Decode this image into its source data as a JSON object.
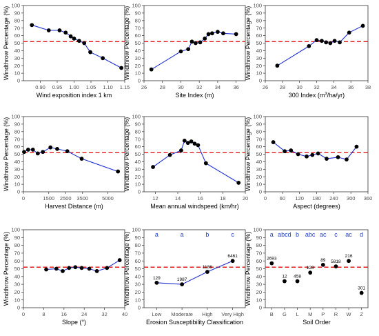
{
  "chart_data": [
    {
      "type": "line",
      "xlabel": "Wind exposition index 1 km",
      "ylabel": "Windthrow Percentage (%)",
      "xlim": [
        0.85,
        1.15
      ],
      "xticks": [
        0.9,
        0.95,
        1.0,
        1.05,
        1.1,
        1.15
      ],
      "xtick_labels": [
        "0.90",
        "0.95",
        "1.00",
        "1.05",
        "1.10",
        "1.15"
      ],
      "ylim": [
        0,
        100
      ],
      "yticks": [
        0,
        10,
        20,
        30,
        40,
        50,
        60,
        70,
        80,
        90,
        100
      ],
      "reference_line": 52,
      "series": [
        {
          "x": [
            0.875,
            0.925,
            0.957,
            0.975,
            0.99,
            1.0,
            1.015,
            1.03,
            1.048,
            1.085,
            1.14
          ],
          "y": [
            74,
            67,
            67,
            64,
            59,
            56,
            53,
            50,
            38,
            30,
            17
          ]
        }
      ]
    },
    {
      "type": "line",
      "xlabel": "Site Index (m)",
      "ylabel": "Windthrow Percentage (%)",
      "xlim": [
        26,
        37
      ],
      "xticks": [
        26,
        28,
        30,
        32,
        34,
        36
      ],
      "xtick_labels": [
        "26",
        "28",
        "30",
        "32",
        "34",
        "36"
      ],
      "ylim": [
        0,
        100
      ],
      "yticks": [
        0,
        10,
        20,
        30,
        40,
        50,
        60,
        70,
        80,
        90,
        100
      ],
      "reference_line": 52,
      "series": [
        {
          "x": [
            26.8,
            30,
            30.8,
            31.2,
            31.6,
            32.1,
            32.6,
            33,
            33.4,
            34,
            34.6,
            36
          ],
          "y": [
            15,
            39,
            42,
            52,
            50,
            51,
            56,
            62,
            63,
            65,
            63,
            62
          ]
        }
      ]
    },
    {
      "type": "line",
      "xlabel": "300 Index (m³/ha/yr)",
      "ylabel": "Windthrow Percentage (%)",
      "xlim": [
        26,
        38
      ],
      "xticks": [
        26,
        28,
        30,
        32,
        34,
        36,
        38
      ],
      "xtick_labels": [
        "26",
        "28",
        "30",
        "32",
        "34",
        "36",
        "38"
      ],
      "ylim": [
        0,
        100
      ],
      "yticks": [
        0,
        10,
        20,
        30,
        40,
        50,
        60,
        70,
        80,
        90,
        100
      ],
      "reference_line": 52,
      "series": [
        {
          "x": [
            27.4,
            31.1,
            32,
            32.6,
            33.1,
            33.6,
            34.1,
            34.7,
            35.8,
            37.4
          ],
          "y": [
            20,
            46,
            54,
            53,
            51,
            50,
            53,
            51,
            64,
            73
          ]
        }
      ]
    },
    {
      "type": "line",
      "xlabel": "Harvest Distance (m)",
      "ylabel": "Windthrow Percentage (%)",
      "xlim": [
        0,
        6000
      ],
      "xticks": [
        0,
        1500,
        2500,
        3500,
        5000
      ],
      "xtick_labels": [
        "0",
        "1500",
        "2500",
        "3500",
        "5000"
      ],
      "ylim": [
        0,
        100
      ],
      "yticks": [
        0,
        10,
        20,
        30,
        40,
        50,
        60,
        70,
        80,
        90,
        100
      ],
      "reference_line": 52,
      "series": [
        {
          "x": [
            40,
            280,
            560,
            850,
            1150,
            1600,
            2000,
            2600,
            3450,
            5600
          ],
          "y": [
            53,
            56,
            56,
            51,
            53,
            59,
            57,
            54,
            44,
            27
          ]
        }
      ]
    },
    {
      "type": "line",
      "xlabel": "Mean annual windspeed (km/hr)",
      "ylabel": "Windthrow Percentage (%)",
      "xlim": [
        11,
        20
      ],
      "xticks": [
        12,
        14,
        16,
        18,
        20
      ],
      "xtick_labels": [
        "12",
        "14",
        "16",
        "18",
        "20"
      ],
      "ylim": [
        0,
        100
      ],
      "yticks": [
        0,
        10,
        20,
        30,
        40,
        50,
        60,
        70,
        80,
        90,
        100
      ],
      "reference_line": 52,
      "series": [
        {
          "x": [
            11.8,
            13.3,
            14.3,
            14.6,
            14.9,
            15.2,
            15.5,
            15.8,
            16.5,
            19.4
          ],
          "y": [
            33,
            49,
            55,
            68,
            65,
            67,
            64,
            62,
            38,
            12
          ]
        }
      ]
    },
    {
      "type": "line",
      "xlabel": "Aspect (degrees)",
      "ylabel": "Windthrow Percentage (%)",
      "xlim": [
        0,
        360
      ],
      "xticks": [
        0,
        60,
        120,
        180,
        240,
        300,
        360
      ],
      "xtick_labels": [
        "0",
        "60",
        "120",
        "180",
        "240",
        "300",
        "360"
      ],
      "ylim": [
        0,
        100
      ],
      "yticks": [
        0,
        10,
        20,
        30,
        40,
        50,
        60,
        70,
        80,
        90,
        100
      ],
      "reference_line": 52,
      "series": [
        {
          "x": [
            28,
            68,
            90,
            115,
            145,
            165,
            185,
            215,
            255,
            285,
            320
          ],
          "y": [
            66,
            54,
            55,
            50,
            47,
            49,
            51,
            44,
            46,
            43,
            60
          ]
        }
      ]
    },
    {
      "type": "line",
      "xlabel": "Slope (°)",
      "ylabel": "Windthrow Percentage (%)",
      "xlim": [
        0,
        40
      ],
      "xticks": [
        0,
        8,
        16,
        24,
        32,
        40
      ],
      "xtick_labels": [
        "0",
        "8",
        "16",
        "24",
        "32",
        "40"
      ],
      "ylim": [
        0,
        100
      ],
      "yticks": [
        0,
        10,
        20,
        30,
        40,
        50,
        60,
        70,
        80,
        90,
        100
      ],
      "reference_line": 52,
      "series": [
        {
          "x": [
            9,
            13,
            15.5,
            18,
            20.5,
            23,
            26,
            29,
            33,
            38
          ],
          "y": [
            49,
            50,
            47,
            51,
            52,
            51,
            50,
            47,
            51,
            61
          ]
        }
      ]
    },
    {
      "type": "line",
      "xlabel": "Erosion Susceptibility Classification",
      "ylabel": "Windthrow Percentage (%)",
      "categories": [
        "Low",
        "Moderate",
        "High",
        "Very High"
      ],
      "ylim": [
        0,
        100
      ],
      "yticks": [
        0,
        10,
        20,
        30,
        40,
        50,
        60,
        70,
        80,
        90,
        100
      ],
      "reference_line": 52,
      "group_letters": [
        "a",
        "a",
        "b",
        "c"
      ],
      "point_labels": [
        "129",
        "1987",
        "1186",
        "6461"
      ],
      "series": [
        {
          "values": [
            32,
            30,
            46,
            60
          ]
        }
      ]
    },
    {
      "type": "scatter",
      "xlabel": "Soil Order",
      "ylabel": "Windthrow Percentage (%)",
      "categories": [
        "B",
        "G",
        "L",
        "M",
        "P",
        "R",
        "W",
        "Z"
      ],
      "ylim": [
        0,
        100
      ],
      "yticks": [
        0,
        10,
        20,
        30,
        40,
        50,
        60,
        70,
        80,
        90,
        100
      ],
      "reference_line": 52,
      "group_letters": [
        "a",
        "abcd",
        "b",
        "abc",
        "ac",
        "c",
        "ac",
        "d"
      ],
      "point_labels": [
        "2693",
        "12",
        "458",
        "128",
        "89",
        "5818",
        "216",
        "301"
      ],
      "series": [
        {
          "values": [
            57,
            34,
            34,
            45,
            55,
            53,
            60,
            19
          ]
        }
      ]
    }
  ]
}
